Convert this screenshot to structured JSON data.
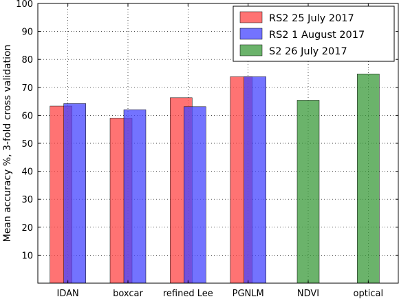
{
  "chart_data": {
    "type": "bar",
    "title": "",
    "xlabel": "",
    "ylabel": "Mean accuracy %, 3-fold cross validation",
    "ylim": [
      0,
      100
    ],
    "yticks": [
      10,
      20,
      30,
      40,
      50,
      60,
      70,
      80,
      90,
      100
    ],
    "grid": true,
    "legend_position": "top-right",
    "categories": [
      "IDAN",
      "boxcar",
      "refined Lee",
      "PGNLM",
      "NDVI",
      "optical"
    ],
    "series": [
      {
        "name": "RS2 25 July 2017",
        "color": "#ff4444",
        "values": [
          63.3,
          59.0,
          66.3,
          73.8,
          null,
          null
        ]
      },
      {
        "name": "RS2 1 August 2017",
        "color": "#4444ff",
        "values": [
          64.2,
          62.0,
          63.1,
          73.8,
          null,
          null
        ]
      },
      {
        "name": "S2 26 July 2017",
        "color": "#3a9a3a",
        "values": [
          null,
          null,
          null,
          null,
          65.4,
          74.8
        ]
      }
    ]
  }
}
